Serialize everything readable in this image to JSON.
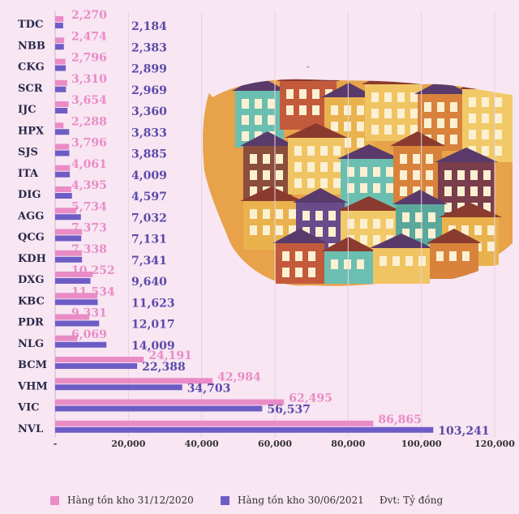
{
  "colors": {
    "series_a": "#e98cc5",
    "series_b": "#6e5cc6",
    "series_b_label": "#5a4aa8",
    "background": "#f8e6f3"
  },
  "legend": {
    "series_a": "Hàng tồn kho 31/12/2020",
    "series_b": "Hàng tồn kho 30/06/2021",
    "unit": "Đvt: Tỷ đồng"
  },
  "chart_data": {
    "type": "bar",
    "orientation": "horizontal",
    "categories": [
      "TDC",
      "NBB",
      "CKG",
      "SCR",
      "IJC",
      "HPX",
      "SJS",
      "ITA",
      "DIG",
      "AGG",
      "QCG",
      "KDH",
      "DXG",
      "KBC",
      "PDR",
      "NLG",
      "BCM",
      "VHM",
      "VIC",
      "NVL"
    ],
    "series": [
      {
        "name": "Hàng tồn kho 31/12/2020",
        "values": [
          2270,
          2474,
          2796,
          3310,
          3654,
          2288,
          3796,
          4061,
          4395,
          5734,
          7373,
          7338,
          10252,
          11534,
          9331,
          6069,
          24191,
          42984,
          62495,
          86865
        ],
        "labels": [
          "2,270",
          "2,474",
          "2,796",
          "3,310",
          "3,654",
          "2,288",
          "3,796",
          "4,061",
          "4,395",
          "5,734",
          "7,373",
          "7,338",
          "10,252",
          "11,534",
          "9,331",
          "6,069",
          "24,191",
          "42,984",
          "62,495",
          "86,865"
        ]
      },
      {
        "name": "Hàng tồn kho 30/06/2021",
        "values": [
          2184,
          2383,
          2899,
          2969,
          3360,
          3833,
          3885,
          4009,
          4597,
          7032,
          7131,
          7341,
          9640,
          11623,
          12017,
          14009,
          22388,
          34703,
          56537,
          103241
        ],
        "labels": [
          "2,184",
          "2,383",
          "2,899",
          "2,969",
          "3,360",
          "3,833",
          "3,885",
          "4,009",
          "4,597",
          "7,032",
          "7,131",
          "7,341",
          "9,640",
          "11,623",
          "12,017",
          "14,009",
          "22,388",
          "34,703",
          "56,537",
          "103,241"
        ]
      }
    ],
    "xlim": [
      0,
      120000
    ],
    "x_ticks": [
      0,
      20000,
      40000,
      60000,
      80000,
      100000,
      120000
    ],
    "x_tick_labels": [
      "-",
      "20,000",
      "40,000",
      "60,000",
      "80,000",
      "100,000",
      "120,000"
    ],
    "grid": "vertical"
  }
}
